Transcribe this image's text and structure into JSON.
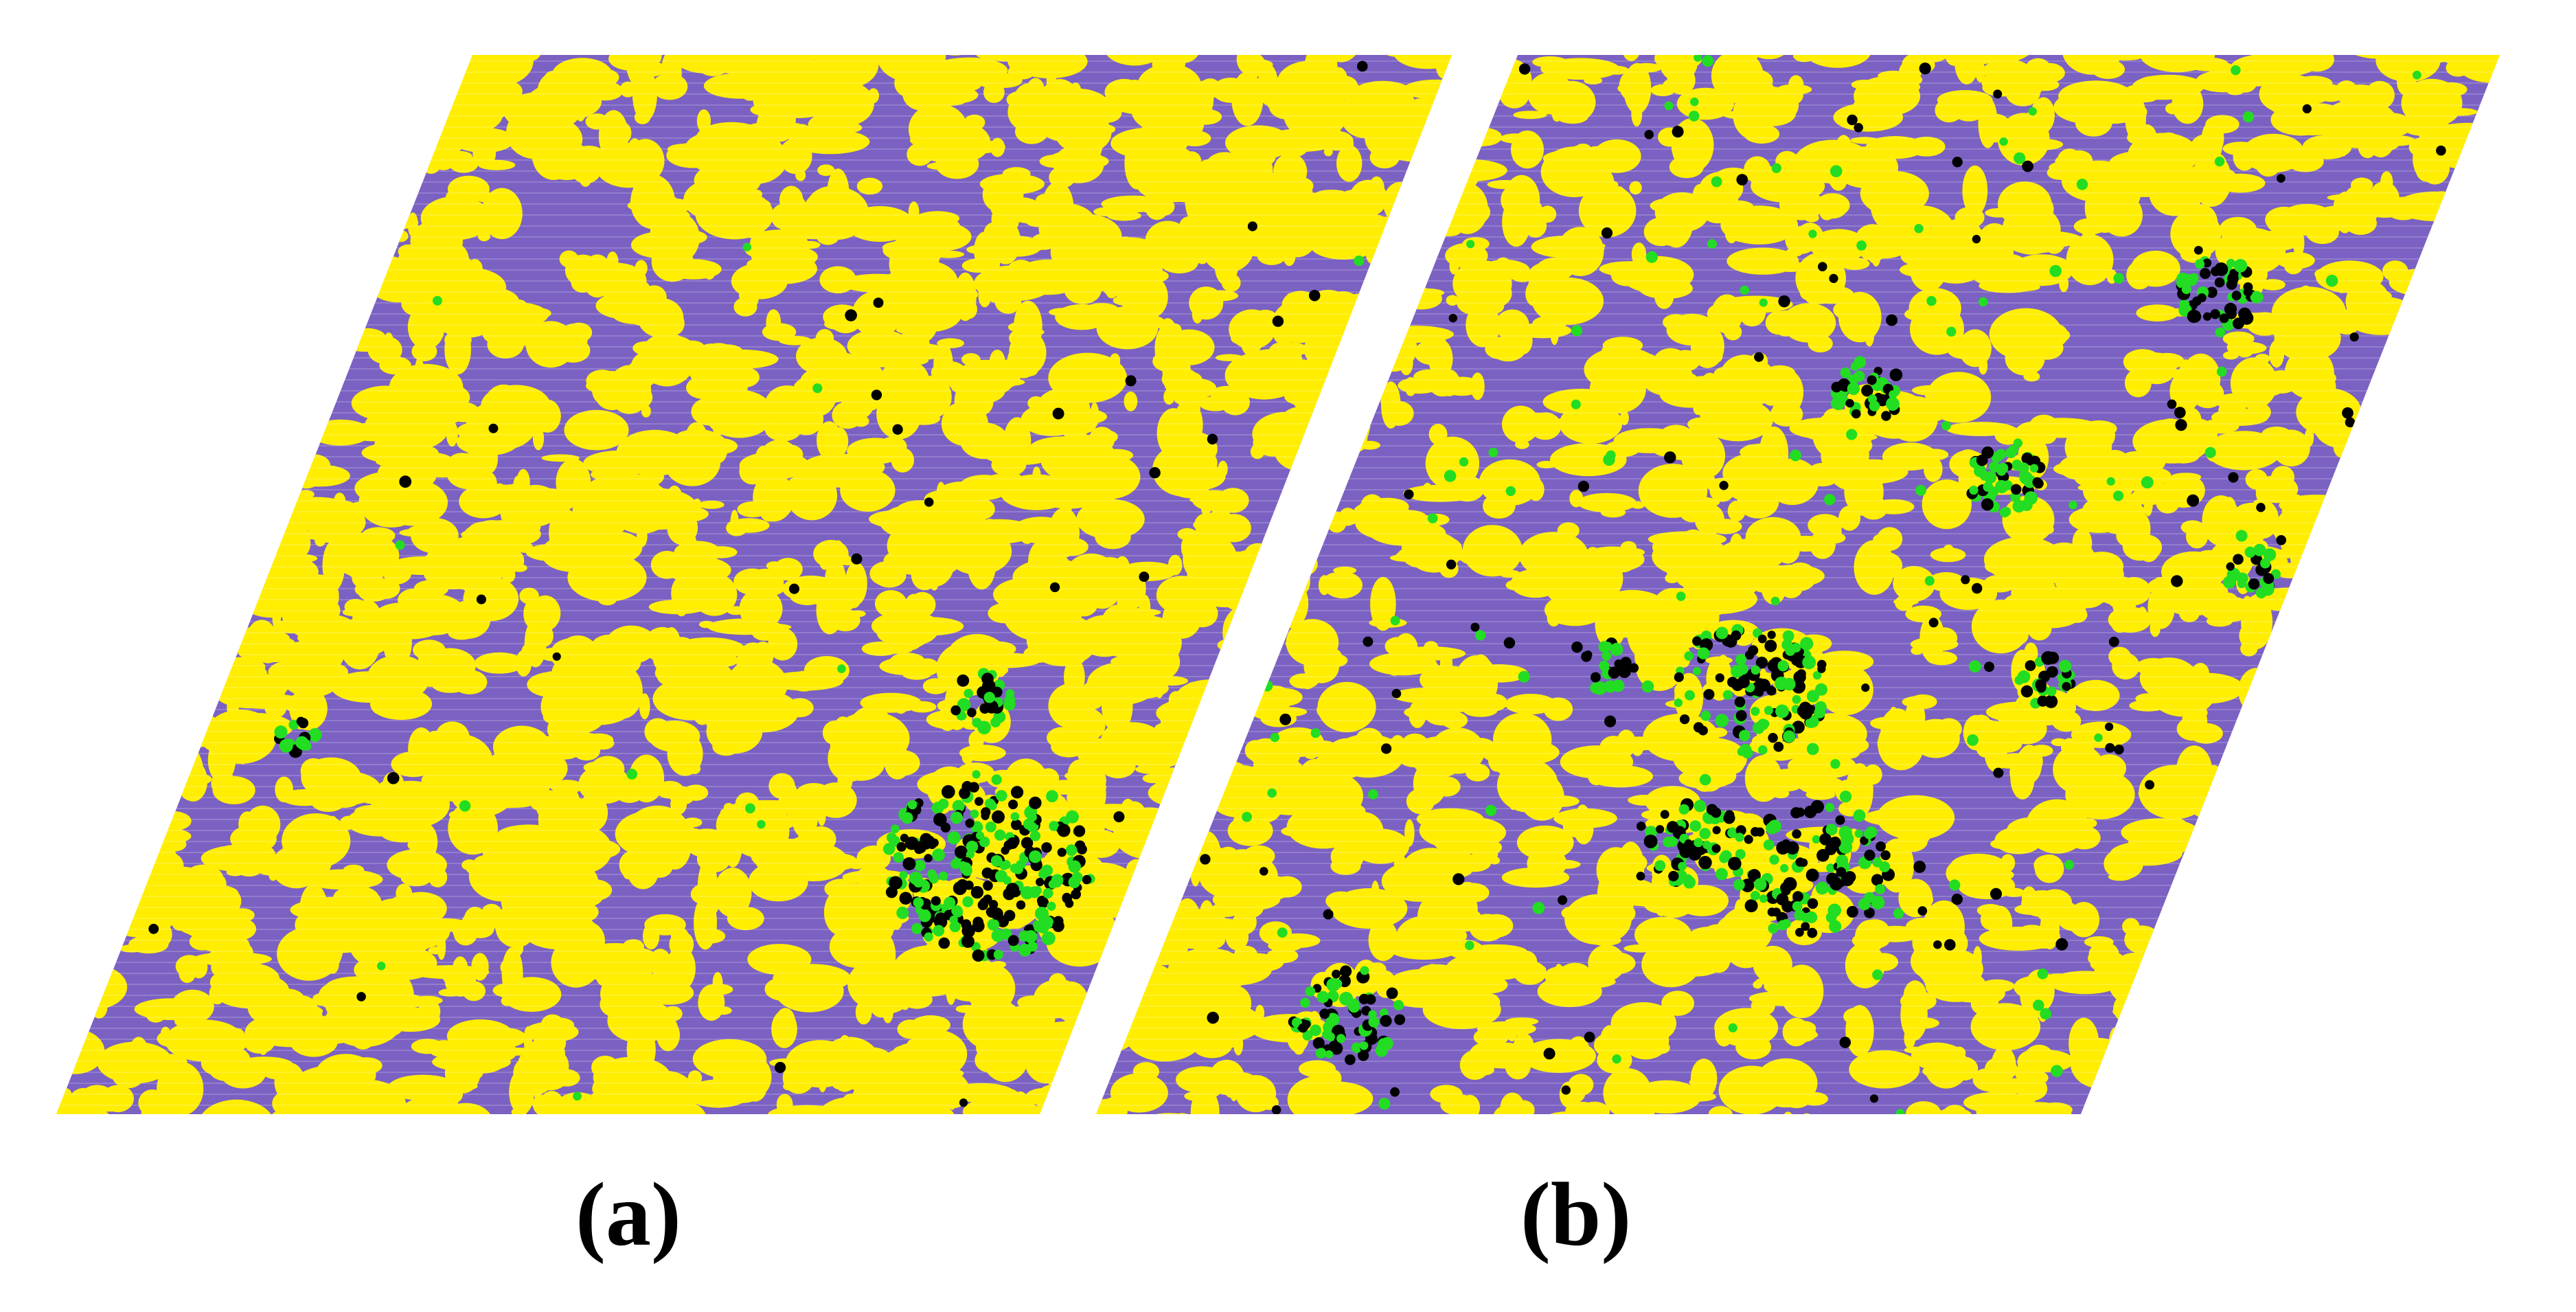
{
  "figure": {
    "colors": {
      "background": "#ffffff",
      "phase_a": "#7b61c2",
      "phase_b": "#ffee00",
      "defect_black": "#000000",
      "defect_green": "#22dd22"
    },
    "panels": [
      {
        "id": "a",
        "label": "(a)",
        "defect_level": "low"
      },
      {
        "id": "b",
        "label": "(b)",
        "defect_level": "high"
      }
    ]
  }
}
